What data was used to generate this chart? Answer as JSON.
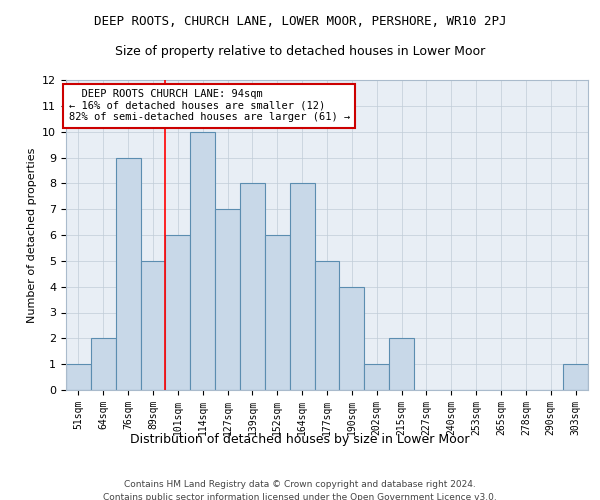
{
  "title": "DEEP ROOTS, CHURCH LANE, LOWER MOOR, PERSHORE, WR10 2PJ",
  "subtitle": "Size of property relative to detached houses in Lower Moor",
  "xlabel": "Distribution of detached houses by size in Lower Moor",
  "ylabel": "Number of detached properties",
  "categories": [
    "51sqm",
    "64sqm",
    "76sqm",
    "89sqm",
    "101sqm",
    "114sqm",
    "127sqm",
    "139sqm",
    "152sqm",
    "164sqm",
    "177sqm",
    "190sqm",
    "202sqm",
    "215sqm",
    "227sqm",
    "240sqm",
    "253sqm",
    "265sqm",
    "278sqm",
    "290sqm",
    "303sqm"
  ],
  "values": [
    1,
    2,
    9,
    5,
    6,
    10,
    7,
    8,
    6,
    8,
    5,
    4,
    1,
    2,
    0,
    0,
    0,
    0,
    0,
    0,
    1
  ],
  "bar_color": "#c8d8e8",
  "bar_edge_color": "#5b8db0",
  "ylim": [
    0,
    12
  ],
  "yticks": [
    0,
    1,
    2,
    3,
    4,
    5,
    6,
    7,
    8,
    9,
    10,
    11,
    12
  ],
  "red_line_x": 3.5,
  "annotation_line1": "  DEEP ROOTS CHURCH LANE: 94sqm",
  "annotation_line2": "← 16% of detached houses are smaller (12)",
  "annotation_line3": "82% of semi-detached houses are larger (61) →",
  "annotation_box_color": "#ffffff",
  "annotation_box_edge": "#cc0000",
  "footer1": "Contains HM Land Registry data © Crown copyright and database right 2024.",
  "footer2": "Contains public sector information licensed under the Open Government Licence v3.0.",
  "background_color": "#ffffff",
  "plot_bg_color": "#e8eef5",
  "grid_color": "#c0ccd8"
}
